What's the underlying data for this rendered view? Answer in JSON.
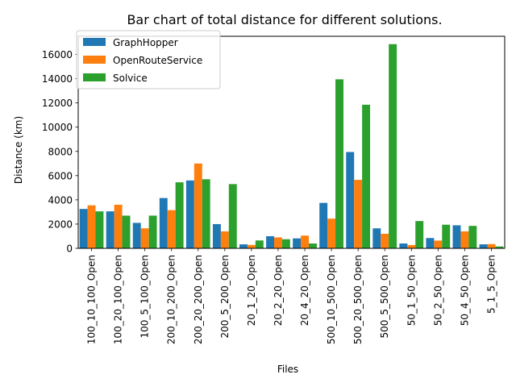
{
  "chart_data": {
    "type": "bar",
    "title": "Bar chart of total distance for different solutions.",
    "xlabel": "Files",
    "ylabel": "Distance (km)",
    "ylim": [
      0,
      17500
    ],
    "yticks": [
      0,
      2000,
      4000,
      6000,
      8000,
      10000,
      12000,
      14000,
      16000
    ],
    "grid": false,
    "legend_position": "top-left",
    "categories": [
      "100_10_100_Open",
      "100_20_100_Open",
      "100_5_100_Open",
      "200_10_200_Open",
      "200_20_200_Open",
      "200_5_200_Open",
      "20_1_20_Open",
      "20_2_20_Open",
      "20_4_20_Open",
      "500_10_500_Open",
      "500_20_500_Open",
      "500_5_500_Open",
      "50_1_50_Open",
      "50_2_50_Open",
      "50_4_50_Open",
      "5_1_5_Open"
    ],
    "series": [
      {
        "name": "GraphHopper",
        "color": "#1f77b4",
        "values": [
          3250,
          3050,
          2100,
          4150,
          5600,
          2000,
          330,
          1000,
          820,
          3750,
          7950,
          1650,
          400,
          850,
          1900,
          330
        ]
      },
      {
        "name": "OpenRouteService",
        "color": "#ff7f0e",
        "values": [
          3550,
          3600,
          1650,
          3150,
          7000,
          1400,
          280,
          900,
          1050,
          2450,
          5650,
          1200,
          270,
          640,
          1400,
          350
        ]
      },
      {
        "name": "Solvice",
        "color": "#2ca02c",
        "values": [
          3050,
          2700,
          2700,
          5450,
          5700,
          5300,
          650,
          750,
          400,
          13950,
          11850,
          16850,
          2250,
          1950,
          1850,
          150
        ]
      }
    ]
  }
}
